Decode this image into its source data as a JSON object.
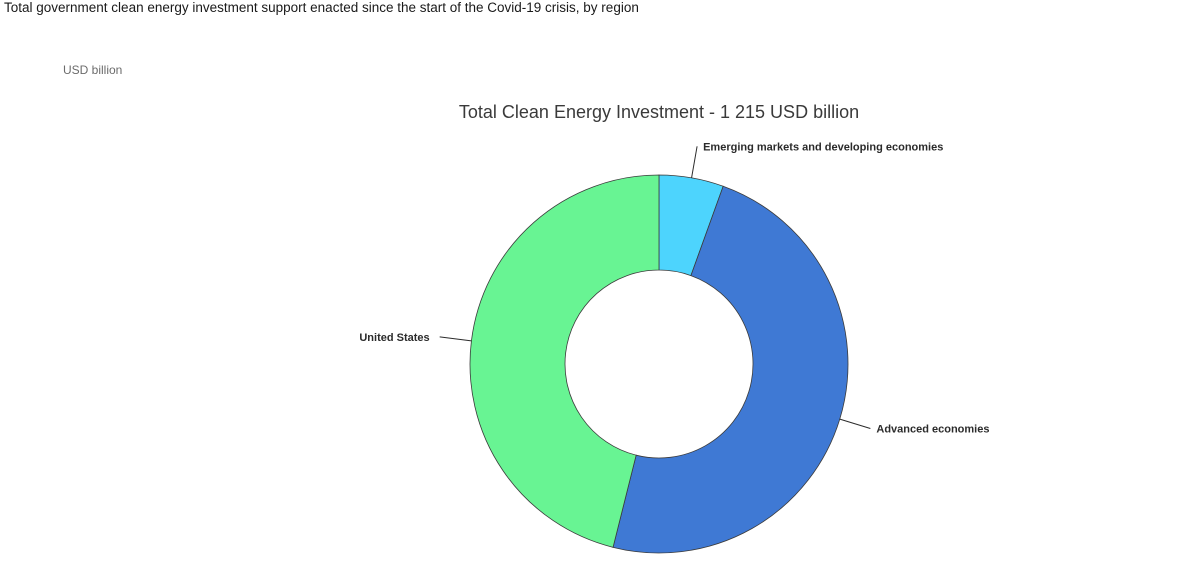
{
  "page": {
    "title": "Total government clean energy investment support enacted since the start of the Covid-19 crisis, by region",
    "unit": "USD billion"
  },
  "chart_data": {
    "type": "pie",
    "subtype": "donut",
    "title": "Total Clean Energy Investment - 1 215 USD billion",
    "total": 1215,
    "unit": "USD billion",
    "legend": "none (slice labels with leader lines)",
    "slices": [
      {
        "label": "Emerging markets and developing economies",
        "value": 67,
        "color": "#4dd4fd"
      },
      {
        "label": "Advanced economies",
        "value": 588,
        "color": "#3f79d4"
      },
      {
        "label": "United States",
        "value": 560,
        "color": "#68f493"
      }
    ]
  }
}
